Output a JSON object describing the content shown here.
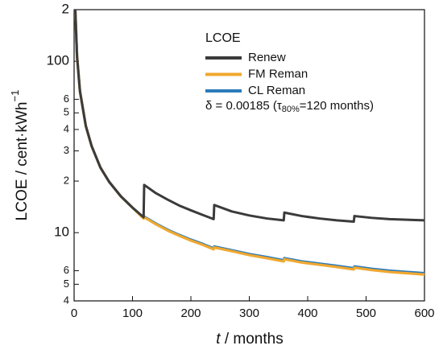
{
  "chart_data": {
    "type": "line",
    "y_label": {
      "main": "LCOE / cent·kWh",
      "sup": "−1"
    },
    "x_label": {
      "italic": "t",
      "rest": " / months"
    },
    "legend_title": "LCOE",
    "annotation": {
      "pre": "δ = 0.00185 (τ",
      "sub": "80%",
      "post": "=120 months)"
    },
    "x": [
      2,
      5,
      10,
      20,
      30,
      45,
      60,
      80,
      100,
      119,
      120,
      140,
      160,
      180,
      200,
      220,
      239,
      240,
      270,
      300,
      330,
      359,
      360,
      390,
      420,
      450,
      479,
      480,
      510,
      540,
      570,
      600
    ],
    "series": [
      {
        "name": "Renew",
        "color": "#3b3b3b",
        "values": [
          200,
          107,
          67,
          42,
          32,
          24,
          19.8,
          16.3,
          14,
          12.3,
          19,
          17,
          15.6,
          14.4,
          13.5,
          12.7,
          12,
          14.5,
          13.3,
          12.6,
          12.1,
          11.8,
          13.1,
          12.5,
          12.1,
          11.8,
          11.6,
          12.5,
          12.2,
          12,
          11.9,
          11.8
        ]
      },
      {
        "name": "FM Reman",
        "color": "#f0a830",
        "values": [
          200,
          107,
          67,
          42,
          32,
          24,
          19.8,
          16.3,
          14,
          12.1,
          12.3,
          11.2,
          10.3,
          9.6,
          9,
          8.5,
          8,
          8.2,
          7.8,
          7.4,
          7.1,
          6.8,
          7,
          6.7,
          6.5,
          6.3,
          6.1,
          6.25,
          6.05,
          5.9,
          5.8,
          5.7
        ]
      },
      {
        "name": "CL Reman",
        "color": "#2b7bba",
        "values": [
          200,
          107,
          67,
          42,
          32,
          24,
          19.8,
          16.3,
          14,
          12.2,
          12.4,
          11.3,
          10.4,
          9.7,
          9.1,
          8.6,
          8.1,
          8.3,
          7.9,
          7.5,
          7.2,
          6.9,
          7.1,
          6.8,
          6.6,
          6.4,
          6.2,
          6.35,
          6.15,
          6,
          5.9,
          5.8
        ]
      }
    ],
    "xlim": [
      0,
      600
    ],
    "xticks": [
      0,
      100,
      200,
      300,
      400,
      500,
      600
    ],
    "ylim": [
      4,
      200
    ],
    "log_y": true,
    "yticks": [
      4,
      5,
      6,
      10,
      {
        "value": 20,
        "label": "2"
      },
      {
        "value": 30,
        "label": "3"
      },
      {
        "value": 40,
        "label": "4"
      },
      {
        "value": 50,
        "label": "5"
      },
      {
        "value": 60,
        "label": "6"
      },
      100,
      {
        "value": 200,
        "label": "2"
      }
    ],
    "grid": false
  }
}
